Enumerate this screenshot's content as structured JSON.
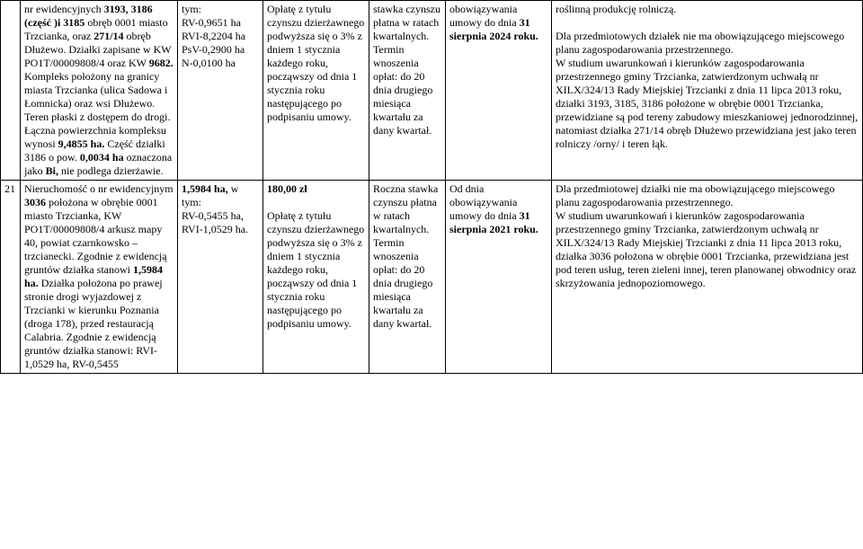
{
  "table": {
    "rows": [
      {
        "num": "",
        "c1": "nr ewidencyjnych 3193, 3186 (część )i 3185 obręb 0001 miasto Trzcianka, oraz 271/14 obręb Dłużewo. Działki zapisane w KW PO1T/00009808/4 oraz KW 9682. Kompleks położony na granicy miasta Trzcianka (ulica Sadowa i Łomnicka) oraz wsi Dłużewo. Teren płaski z dostępem do drogi. Łączna powierzchnia kompleksu wynosi 9,4855 ha. Część działki 3186 o pow. 0,0034 ha oznaczona jako Bi, nie podlega dzierżawie.",
        "c2": "tym:\nRV-0,9651 ha\nRVI-8,2204 ha\nPsV-0,2900 ha\nN-0,0100 ha",
        "c3": "Opłatę z tytułu czynszu dzierżawnego podwyższa się o 3% z dniem 1 stycznia każdego roku, począwszy od dnia 1 stycznia roku następującego po podpisaniu umowy.",
        "c4": "stawka czynszu płatna w ratach kwartalnych. Termin wnoszenia opłat: do 20 dnia drugiego miesiąca kwartału za dany kwartał.",
        "c5": "obowiązywania umowy do dnia 31 sierpnia 2024 roku.",
        "c6": "roślinną produkcję rolniczą.\n\nDla przedmiotowych działek nie ma obowiązującego  miejscowego planu zagospodarowania przestrzennego.\nW studium uwarunkowań i kierunków zagospodarowania przestrzennego gminy Trzcianka, zatwierdzonym uchwałą nr XILX/324/13 Rady Miejskiej Trzcianki z dnia 11 lipca 2013 roku, działki 3193, 3185, 3186  położone  w obrębie 0001 Trzcianka, przewidziane są  pod tereny zabudowy mieszkaniowej jednorodzinnej, natomiast działka 271/14 obręb Dłużewo  przewidziana jest jako teren rolniczy /orny/ i teren łąk."
      },
      {
        "num": "21",
        "c1": "Nieruchomość o nr ewidencyjnym 3036 położona w obrębie 0001 miasto Trzcianka, KW PO1T/00009808/4 arkusz mapy 40, powiat czarnkowsko – trzcianecki. Zgodnie z ewidencją gruntów działka stanowi 1,5984 ha. Działka położona po prawej stronie drogi wyjazdowej z Trzcianki w kierunku Poznania (droga 178), przed restauracją Calabria. Zgodnie z  ewidencją gruntów działka stanowi: RVI-1,0529 ha, RV-0,5455",
        "c2": "1,5984 ha, w tym:\nRV-0,5455 ha,\nRVI-1,0529 ha.",
        "c3": "180,00 zł\n\nOpłatę z tytułu czynszu dzierżawnego podwyższa się o 3% z dniem 1 stycznia każdego roku, począwszy od dnia 1 stycznia roku następującego po podpisaniu umowy.",
        "c4": "Roczna stawka czynszu płatna w ratach kwartalnych.  Termin wnoszenia opłat: do 20 dnia drugiego miesiąca kwartału za dany kwartał.",
        "c5": "Od dnia obowiązywania umowy do dnia 31 sierpnia 2021 roku.",
        "c6": "Dla przedmiotowej działki nie ma obowiązującego  miejscowego planu zagospodarowania przestrzennego.\nW studium uwarunkowań i kierunków zagospodarowania przestrzennego gminy Trzcianka, zatwierdzonym uchwałą nr XILX/324/13 Rady Miejskiej Trzcianki z dnia 11 lipca 2013 roku, działka 3036 położona w obrębie 0001 Trzcianka, przewidziana jest pod teren usług,  teren zieleni innej, teren planowanej obwodnicy oraz skrzyżowania jednopoziomowego."
      }
    ]
  },
  "bold_terms_r0_c1": [
    "3193,",
    "3186 (część )i 3185",
    "271/14",
    "9682.",
    "9,4855 ha.",
    "3186",
    "0,0034 ha",
    "Bi,"
  ],
  "bold_terms_r0_c5": [
    "31 sierpnia 2024 roku."
  ],
  "bold_terms_r1_c1": [
    "3036",
    "1,5984 ha."
  ],
  "bold_terms_r1_c2_lead": "1,5984 ha,",
  "bold_terms_r1_c3_lead": "180,00 zł",
  "bold_terms_r1_c5": [
    "31 sierpnia 2021 roku."
  ]
}
